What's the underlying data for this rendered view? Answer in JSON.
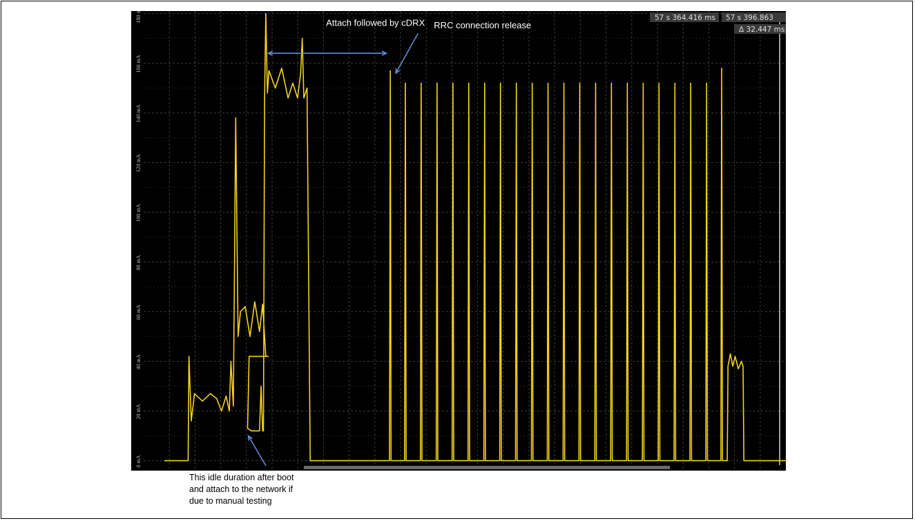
{
  "chart_data": {
    "type": "line",
    "title": "",
    "xlabel": "",
    "ylabel": "",
    "ylim": [
      -4,
      181
    ],
    "y_ticks": [
      "0 mA",
      "20 mA",
      "40 mA",
      "60 mA",
      "80 mA",
      "100 mA",
      "120 mA",
      "140 mA",
      "160 mA",
      "180 mA"
    ],
    "y_tick_values": [
      0,
      20,
      40,
      60,
      80,
      100,
      120,
      140,
      160,
      180
    ],
    "grid": true,
    "x_unit": "ms",
    "xlim": [
      0,
      39.2
    ],
    "series": [
      {
        "color": "#f5d31a",
        "points": [
          [
            0,
            0
          ],
          [
            1.5,
            0
          ],
          [
            1.55,
            42
          ],
          [
            1.7,
            16
          ],
          [
            1.9,
            27
          ],
          [
            2.4,
            24
          ],
          [
            2.9,
            27
          ],
          [
            3.3,
            25
          ],
          [
            3.6,
            20
          ],
          [
            3.9,
            26
          ],
          [
            4.1,
            20
          ],
          [
            4.2,
            40
          ],
          [
            4.35,
            22
          ],
          [
            4.5,
            138
          ],
          [
            4.65,
            50
          ],
          [
            4.8,
            60
          ],
          [
            5.1,
            62
          ],
          [
            5.4,
            50
          ],
          [
            5.7,
            64
          ],
          [
            6.0,
            52
          ],
          [
            6.2,
            63
          ],
          [
            6.4,
            42
          ],
          [
            6.55,
            42
          ],
          [
            5.35,
            42
          ],
          [
            5.25,
            13
          ],
          [
            5.5,
            12
          ],
          [
            5.85,
            12
          ],
          [
            6.0,
            12
          ],
          [
            6.1,
            30
          ],
          [
            6.2,
            12
          ],
          [
            6.25,
            12
          ],
          [
            6.32,
            145
          ],
          [
            6.4,
            180
          ],
          [
            6.5,
            148
          ],
          [
            6.6,
            157
          ],
          [
            7.0,
            150
          ],
          [
            7.4,
            158
          ],
          [
            7.8,
            146
          ],
          [
            8.1,
            152
          ],
          [
            8.4,
            146
          ],
          [
            8.6,
            156
          ],
          [
            8.7,
            170
          ],
          [
            8.8,
            146
          ],
          [
            9.0,
            150
          ],
          [
            9.2,
            0
          ],
          [
            9.5,
            0
          ],
          [
            10.5,
            0
          ],
          [
            11.5,
            0
          ],
          [
            12.5,
            0
          ],
          [
            13.5,
            0
          ],
          [
            14.2,
            0
          ],
          [
            14.25,
            157
          ],
          [
            14.3,
            0
          ],
          [
            15.15,
            0
          ],
          [
            15.2,
            152
          ],
          [
            15.25,
            0
          ],
          [
            16.15,
            0
          ],
          [
            16.2,
            152
          ],
          [
            16.25,
            0
          ],
          [
            17.15,
            0
          ],
          [
            17.2,
            152
          ],
          [
            17.25,
            0
          ],
          [
            18.15,
            0
          ],
          [
            18.2,
            152
          ],
          [
            18.25,
            0
          ],
          [
            19.15,
            0
          ],
          [
            19.2,
            152
          ],
          [
            19.25,
            0
          ],
          [
            20.15,
            0
          ],
          [
            20.2,
            152
          ],
          [
            20.25,
            0
          ],
          [
            21.15,
            0
          ],
          [
            21.2,
            152
          ],
          [
            21.25,
            0
          ],
          [
            22.15,
            0
          ],
          [
            22.2,
            152
          ],
          [
            22.25,
            0
          ],
          [
            23.15,
            0
          ],
          [
            23.2,
            152
          ],
          [
            23.25,
            0
          ],
          [
            24.15,
            0
          ],
          [
            24.2,
            152
          ],
          [
            24.25,
            0
          ],
          [
            25.15,
            0
          ],
          [
            25.2,
            152
          ],
          [
            25.25,
            0
          ],
          [
            26.15,
            0
          ],
          [
            26.2,
            152
          ],
          [
            26.25,
            0
          ],
          [
            27.15,
            0
          ],
          [
            27.2,
            152
          ],
          [
            27.25,
            0
          ],
          [
            28.15,
            0
          ],
          [
            28.2,
            152
          ],
          [
            28.25,
            0
          ],
          [
            29.15,
            0
          ],
          [
            29.2,
            152
          ],
          [
            29.25,
            0
          ],
          [
            30.15,
            0
          ],
          [
            30.2,
            152
          ],
          [
            30.25,
            0
          ],
          [
            31.15,
            0
          ],
          [
            31.2,
            152
          ],
          [
            31.25,
            0
          ],
          [
            32.15,
            0
          ],
          [
            32.2,
            152
          ],
          [
            32.25,
            0
          ],
          [
            33.15,
            0
          ],
          [
            33.2,
            152
          ],
          [
            33.25,
            0
          ],
          [
            34.15,
            0
          ],
          [
            34.2,
            152
          ],
          [
            34.25,
            0
          ],
          [
            35.1,
            0
          ],
          [
            35.15,
            158
          ],
          [
            35.2,
            0
          ],
          [
            35.5,
            0
          ],
          [
            35.55,
            38
          ],
          [
            35.7,
            43
          ],
          [
            35.85,
            38
          ],
          [
            36.0,
            42
          ],
          [
            36.2,
            37
          ],
          [
            36.4,
            40
          ],
          [
            36.5,
            38
          ],
          [
            36.55,
            0
          ],
          [
            37.5,
            0
          ],
          [
            39.2,
            0
          ]
        ]
      }
    ],
    "annotations": [
      {
        "text": "Attach  followed by cDRX",
        "x": 10.2,
        "y": 175
      },
      {
        "text": "RRC connection release",
        "x": 17.0,
        "y": 174
      }
    ],
    "arrows": [
      {
        "from": [
          6.55,
          164
        ],
        "to": [
          14.0,
          164
        ],
        "double": true
      },
      {
        "from": [
          16.0,
          172
        ],
        "to": [
          14.6,
          156
        ]
      },
      {
        "from": [
          6.4,
          -2
        ],
        "to": [
          5.3,
          10
        ]
      }
    ],
    "cursor_readouts": [
      "57 s 364.416 ms",
      "57 s 396.863",
      "Δ 32.447 ms"
    ],
    "cursor_x": 39.2
  },
  "caption": {
    "lines": [
      "This idle duration after boot",
      "and attach to the network if",
      "due to manual testing"
    ]
  },
  "colors": {
    "plot_bg": "#000000",
    "grid": "#3c3c3c",
    "trace": "#f5d31a",
    "arrow": "#5b8fd6",
    "readout_bg": "#3a3a3a"
  }
}
